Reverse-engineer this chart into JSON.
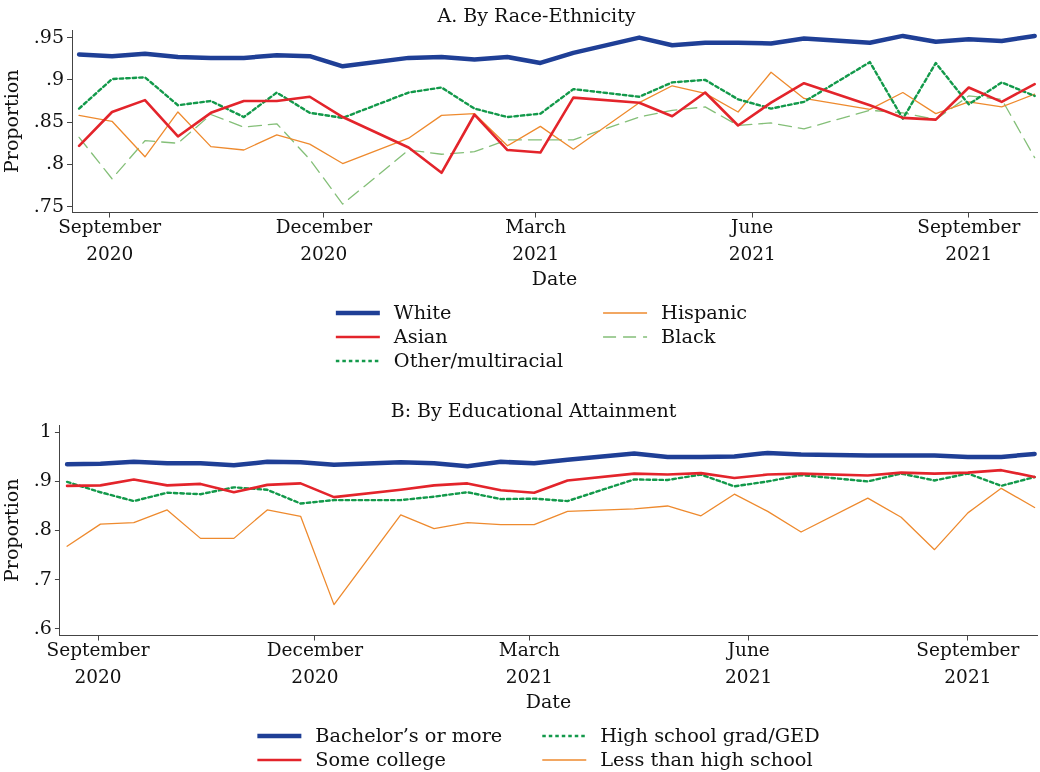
{
  "chart_data": [
    {
      "type": "line",
      "title": "A. By Race-Ethnicity",
      "xlabel": "Date",
      "ylabel": "Proportion",
      "legend": "bottom",
      "x": [
        "2020-08-19",
        "2020-09-02",
        "2020-09-16",
        "2020-09-30",
        "2020-10-14",
        "2020-10-28",
        "2020-11-11",
        "2020-11-25",
        "2020-12-09",
        "2021-01-06",
        "2021-01-20",
        "2021-02-03",
        "2021-02-17",
        "2021-03-03",
        "2021-03-17",
        "2021-04-14",
        "2021-04-28",
        "2021-05-12",
        "2021-05-26",
        "2021-06-09",
        "2021-06-23",
        "2021-07-21",
        "2021-08-04",
        "2021-08-18",
        "2021-09-01",
        "2021-09-15",
        "2021-09-29"
      ],
      "series": [
        {
          "name": "White",
          "color": "#1f3f96",
          "line_style": "solid",
          "values": [
            0.93,
            0.928,
            0.931,
            0.927,
            0.926,
            0.926,
            0.929,
            0.928,
            0.916,
            0.926,
            0.927,
            0.924,
            0.927,
            0.92,
            0.932,
            0.95,
            0.941,
            0.944,
            0.944,
            0.943,
            0.949,
            0.944,
            0.952,
            0.945,
            0.948,
            0.946,
            0.952
          ]
        },
        {
          "name": "Asian",
          "color": "#e3242b",
          "line_style": "solid",
          "values": [
            0.822,
            0.862,
            0.876,
            0.833,
            0.861,
            0.875,
            0.875,
            0.88,
            0.856,
            0.82,
            0.79,
            0.859,
            0.817,
            0.814,
            0.879,
            0.873,
            0.857,
            0.885,
            0.846,
            0.873,
            0.896,
            0.87,
            0.855,
            0.853,
            0.891,
            0.874,
            0.895
          ]
        },
        {
          "name": "Other/multiracial",
          "color": "#12994a",
          "line_style": "dotted",
          "values": [
            0.866,
            0.901,
            0.903,
            0.87,
            0.875,
            0.856,
            0.885,
            0.861,
            0.855,
            0.885,
            0.891,
            0.866,
            0.856,
            0.86,
            0.889,
            0.88,
            0.897,
            0.9,
            0.877,
            0.866,
            0.874,
            0.921,
            0.854,
            0.92,
            0.871,
            0.897,
            0.881
          ]
        },
        {
          "name": "Hispanic",
          "color": "#ee8a2e",
          "line_style": "solid",
          "values": [
            0.858,
            0.851,
            0.809,
            0.862,
            0.821,
            0.817,
            0.835,
            0.824,
            0.801,
            0.831,
            0.858,
            0.86,
            0.822,
            0.845,
            0.818,
            0.873,
            0.893,
            0.884,
            0.862,
            0.909,
            0.878,
            0.865,
            0.885,
            0.86,
            0.874,
            0.868,
            0.883
          ]
        },
        {
          "name": "Black",
          "color": "#84bf78",
          "line_style": "dashed",
          "values": [
            0.832,
            0.783,
            0.828,
            0.825,
            0.859,
            0.844,
            0.848,
            0.806,
            0.753,
            0.817,
            0.812,
            0.815,
            0.829,
            0.829,
            0.829,
            0.856,
            0.864,
            0.868,
            0.846,
            0.849,
            0.842,
            0.864,
            0.861,
            0.853,
            0.881,
            0.877,
            0.808
          ]
        }
      ],
      "xlim": [
        "2020-08-16",
        "2021-09-30"
      ],
      "xticks": [
        {
          "value": "2020-09-01",
          "label": "September\n2020"
        },
        {
          "value": "2020-12-01",
          "label": "December\n2020"
        },
        {
          "value": "2021-03-01",
          "label": "March\n2021"
        },
        {
          "value": "2021-06-01",
          "label": "June\n2021"
        },
        {
          "value": "2021-09-01",
          "label": "September\n2021"
        }
      ],
      "ylim": [
        0.743,
        0.959
      ],
      "yticks": [
        {
          "value": 0.75,
          "label": ".75"
        },
        {
          "value": 0.8,
          "label": ".8"
        },
        {
          "value": 0.85,
          "label": ".85"
        },
        {
          "value": 0.9,
          "label": ".9"
        },
        {
          "value": 0.95,
          "label": ".95"
        }
      ]
    },
    {
      "type": "line",
      "title": "B: By Educational Attainment",
      "xlabel": "Date",
      "ylabel": "Proportion",
      "legend": "bottom",
      "x": [
        "2020-08-19",
        "2020-09-02",
        "2020-09-16",
        "2020-09-30",
        "2020-10-14",
        "2020-10-28",
        "2020-11-11",
        "2020-11-25",
        "2020-12-09",
        "2021-01-06",
        "2021-01-20",
        "2021-02-03",
        "2021-02-17",
        "2021-03-03",
        "2021-03-17",
        "2021-04-14",
        "2021-04-28",
        "2021-05-12",
        "2021-05-26",
        "2021-06-09",
        "2021-06-23",
        "2021-07-21",
        "2021-08-04",
        "2021-08-18",
        "2021-09-01",
        "2021-09-15",
        "2021-09-29"
      ],
      "series": [
        {
          "name": "Bachelor’s or more",
          "color": "#1f3f96",
          "line_style": "solid",
          "values": [
            0.935,
            0.936,
            0.94,
            0.937,
            0.937,
            0.933,
            0.94,
            0.939,
            0.934,
            0.939,
            0.937,
            0.931,
            0.94,
            0.937,
            0.944,
            0.957,
            0.95,
            0.95,
            0.951,
            0.958,
            0.955,
            0.953,
            0.953,
            0.953,
            0.95,
            0.95,
            0.956
          ]
        },
        {
          "name": "Some college",
          "color": "#e3242b",
          "line_style": "solid",
          "values": [
            0.891,
            0.892,
            0.904,
            0.892,
            0.895,
            0.878,
            0.893,
            0.896,
            0.868,
            0.883,
            0.892,
            0.896,
            0.882,
            0.877,
            0.902,
            0.916,
            0.914,
            0.917,
            0.907,
            0.914,
            0.916,
            0.912,
            0.918,
            0.916,
            0.918,
            0.923,
            0.909
          ]
        },
        {
          "name": "High school grad/GED",
          "color": "#12994a",
          "line_style": "dotted",
          "values": [
            0.899,
            0.878,
            0.86,
            0.877,
            0.874,
            0.888,
            0.883,
            0.855,
            0.862,
            0.862,
            0.869,
            0.878,
            0.864,
            0.865,
            0.86,
            0.904,
            0.903,
            0.914,
            0.89,
            0.9,
            0.913,
            0.9,
            0.916,
            0.902,
            0.916,
            0.891,
            0.909
          ]
        },
        {
          "name": "Less than high school",
          "color": "#ee8a2e",
          "line_style": "solid",
          "values": [
            0.768,
            0.813,
            0.816,
            0.842,
            0.784,
            0.784,
            0.842,
            0.829,
            0.649,
            0.832,
            0.804,
            0.816,
            0.812,
            0.812,
            0.839,
            0.844,
            0.85,
            0.83,
            0.874,
            0.839,
            0.797,
            0.866,
            0.827,
            0.761,
            0.836,
            0.886,
            0.847
          ]
        }
      ],
      "xlim": [
        "2020-08-16",
        "2021-09-30"
      ],
      "xticks": [
        {
          "value": "2020-09-01",
          "label": "September\n2020"
        },
        {
          "value": "2020-12-01",
          "label": "December\n2020"
        },
        {
          "value": "2021-03-01",
          "label": "March\n2021"
        },
        {
          "value": "2021-06-01",
          "label": "June\n2021"
        },
        {
          "value": "2021-09-01",
          "label": "September\n2021"
        }
      ],
      "ylim": [
        0.586,
        1.015
      ],
      "yticks": [
        {
          "value": 0.6,
          "label": ".6"
        },
        {
          "value": 0.7,
          "label": ".7"
        },
        {
          "value": 0.8,
          "label": ".8"
        },
        {
          "value": 0.9,
          "label": ".9"
        },
        1
      ]
    }
  ]
}
